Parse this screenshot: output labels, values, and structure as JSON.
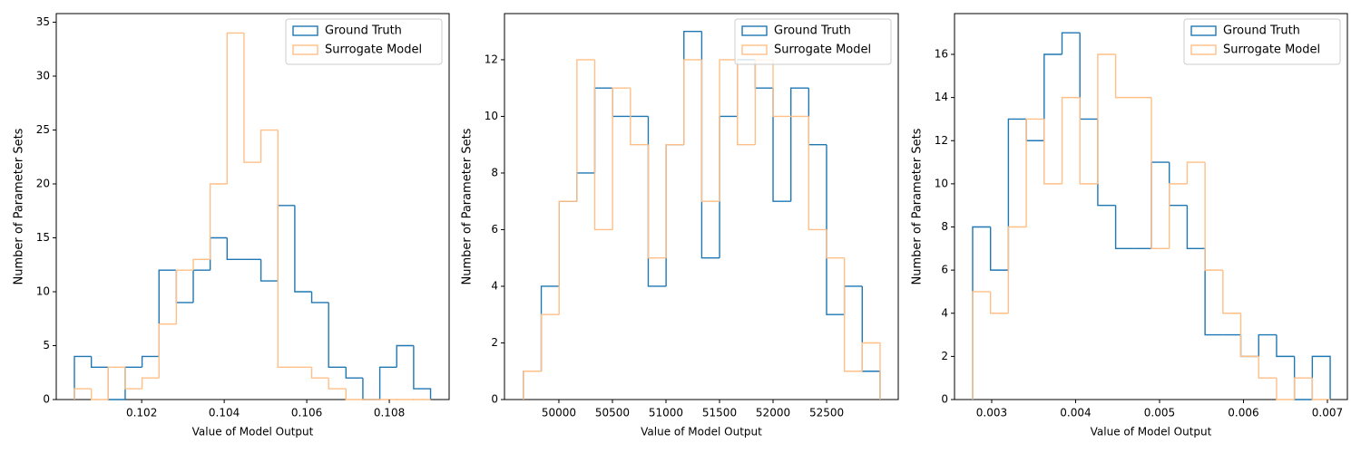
{
  "chart_data": [
    {
      "type": "histogram",
      "xlabel": "Value of Model Output",
      "ylabel": "Number of Parameter Sets",
      "bins": [
        0.10037,
        0.10078,
        0.10119,
        0.1016,
        0.10201,
        0.10242,
        0.10284,
        0.10325,
        0.10366,
        0.10407,
        0.10448,
        0.10489,
        0.1053,
        0.10571,
        0.10612,
        0.10653,
        0.10695,
        0.10736,
        0.10777,
        0.10818,
        0.10859,
        0.109
      ],
      "series": [
        {
          "name": "Ground Truth",
          "color": "#1f77b4",
          "values": [
            4,
            3,
            0,
            3,
            4,
            12,
            9,
            12,
            15,
            13,
            13,
            11,
            18,
            10,
            9,
            3,
            2,
            0,
            3,
            5,
            1
          ]
        },
        {
          "name": "Surrogate Model",
          "color": "#ffbf87",
          "values": [
            1,
            0,
            3,
            1,
            2,
            7,
            12,
            13,
            20,
            34,
            22,
            25,
            3,
            3,
            2,
            1,
            0,
            0,
            0,
            0,
            0
          ]
        }
      ],
      "xlim": [
        0.09993,
        0.10945
      ],
      "ylim": [
        0,
        35.8
      ],
      "xticks": [
        0.102,
        0.104,
        0.106,
        0.108
      ],
      "yticks": [
        0,
        5,
        10,
        15,
        20,
        25,
        30,
        35
      ],
      "legend": "upper right"
    },
    {
      "type": "histogram",
      "xlabel": "Value of Model Output",
      "ylabel": "Number of Parameter Sets",
      "bins": [
        49669,
        49835.5,
        50002,
        50168.5,
        50335,
        50501.5,
        50668,
        50834.5,
        51001,
        51167.5,
        51334,
        51500.5,
        51667,
        51833.5,
        52000,
        52166.5,
        52333,
        52499.5,
        52666,
        52832.5,
        52999
      ],
      "series": [
        {
          "name": "Ground Truth",
          "color": "#1f77b4",
          "values": [
            1,
            4,
            7,
            8,
            11,
            10,
            10,
            4,
            9,
            13,
            5,
            10,
            12,
            11,
            7,
            11,
            9,
            3,
            4,
            1
          ]
        },
        {
          "name": "Surrogate Model",
          "color": "#ffbf87",
          "values": [
            1,
            3,
            7,
            12,
            6,
            11,
            9,
            5,
            9,
            12,
            7,
            12,
            9,
            12,
            10,
            10,
            6,
            5,
            1,
            2
          ]
        }
      ],
      "xlim": [
        49492,
        53169
      ],
      "ylim": [
        0,
        13.63
      ],
      "xticks": [
        50000,
        50500,
        51000,
        51500,
        52000,
        52500
      ],
      "yticks": [
        0,
        2,
        4,
        6,
        8,
        10,
        12
      ],
      "legend": "upper right"
    },
    {
      "type": "histogram",
      "xlabel": "Value of Model Output",
      "ylabel": "Number of Parameter Sets",
      "bins": [
        0.002773,
        0.002986,
        0.003199,
        0.003412,
        0.003625,
        0.003838,
        0.004051,
        0.004264,
        0.004477,
        0.00469,
        0.004903,
        0.005116,
        0.005329,
        0.005542,
        0.005755,
        0.005968,
        0.006181,
        0.006394,
        0.006607,
        0.00682,
        0.007033
      ],
      "series": [
        {
          "name": "Ground Truth",
          "color": "#1f77b4",
          "values": [
            8,
            6,
            13,
            12,
            16,
            17,
            13,
            9,
            7,
            7,
            11,
            9,
            7,
            3,
            3,
            2,
            3,
            2,
            0,
            2
          ]
        },
        {
          "name": "Surrogate Model",
          "color": "#ffbf87",
          "values": [
            5,
            4,
            8,
            13,
            10,
            14,
            10,
            16,
            14,
            14,
            7,
            10,
            11,
            6,
            4,
            2,
            1,
            0,
            1,
            0
          ]
        }
      ],
      "xlim": [
        0.002557,
        0.007238
      ],
      "ylim": [
        0,
        17.89
      ],
      "xticks": [
        0.003,
        0.004,
        0.005,
        0.006,
        0.007
      ],
      "yticks": [
        0,
        2,
        4,
        6,
        8,
        10,
        12,
        14,
        16
      ],
      "legend": "upper right"
    }
  ]
}
